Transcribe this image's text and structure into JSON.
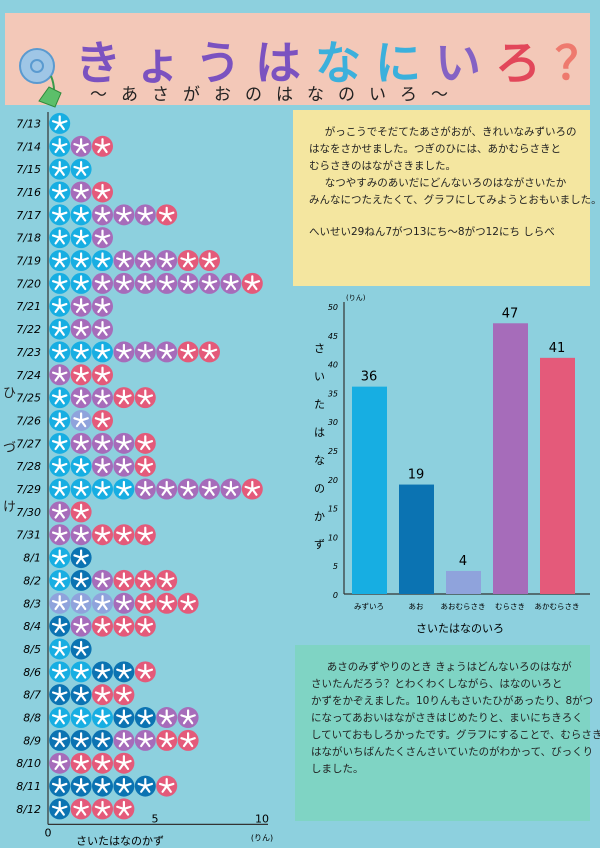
{
  "header": {
    "title_chars": [
      {
        "ch": "き",
        "color": "#7b52c0"
      },
      {
        "ch": "ょ",
        "color": "#7b52c0"
      },
      {
        "ch": "う",
        "color": "#7b52c0"
      },
      {
        "ch": "は",
        "color": "#7b52c0"
      },
      {
        "ch": "な",
        "color": "#3bb0dc"
      },
      {
        "ch": "に",
        "color": "#3bb0dc"
      },
      {
        "ch": "い",
        "color": "#8462c4"
      },
      {
        "ch": "ろ",
        "color": "#e2475a"
      },
      {
        "ch": "？",
        "color": "#ee7a6e"
      }
    ],
    "subtitle": "〜あさがおのはなのいろ〜"
  },
  "intro": {
    "lines": [
      "がっこうでそだてたあさがおが、きれいなみずいろの",
      "はなをさかせました。つぎのひには、あかむらさきと",
      "むらさきのはながさきました。",
      "なつやすみのあいだにどんないろのはながさいたか",
      "みんなにつたえたくて、グラフにしてみようとおもいました。"
    ],
    "period": "へいせい29ねん7がつ13にち〜8がつ12にち しらべ"
  },
  "summary": {
    "lines": [
      "あさのみずやりのとき きょうはどんないろのはなが",
      "さいたんだろう？とわくわくしながら、はなのいろと",
      "かずをかぞえました。10りんもさいたひがあったり、8がつ",
      "になってあおいはながさきはじめたりと、まいにちきろく",
      "していておもしろかったです。グラフにすることで、むらさきの",
      "はながいちばんたくさんさいていたのがわかって、びっくり",
      "しました。"
    ]
  },
  "side_label": [
    "ひ",
    "づ",
    "け"
  ],
  "colors": {
    "L": "#17aee2",
    "B": "#0b73b2",
    "V": "#8fa3dc",
    "P": "#a66cba",
    "R": "#e45a7a"
  },
  "chart_data": [
    {
      "type": "table",
      "xlabel": "さいたはなのかず",
      "xunit": "(りん)",
      "xticks": [
        0,
        5,
        10
      ],
      "xlim": [
        0,
        10
      ],
      "days": [
        {
          "date": "7/13",
          "flowers": "L"
        },
        {
          "date": "7/14",
          "flowers": "LPR"
        },
        {
          "date": "7/15",
          "flowers": "LL"
        },
        {
          "date": "7/16",
          "flowers": "LPR"
        },
        {
          "date": "7/17",
          "flowers": "LLPPPR"
        },
        {
          "date": "7/18",
          "flowers": "LLP"
        },
        {
          "date": "7/19",
          "flowers": "LLLPPPRR"
        },
        {
          "date": "7/20",
          "flowers": "LLPPPPPPPR"
        },
        {
          "date": "7/21",
          "flowers": "LPP"
        },
        {
          "date": "7/22",
          "flowers": "LPP"
        },
        {
          "date": "7/23",
          "flowers": "LLLPPPRR"
        },
        {
          "date": "7/24",
          "flowers": "PRR"
        },
        {
          "date": "7/25",
          "flowers": "LPPRR"
        },
        {
          "date": "7/26",
          "flowers": "LVR"
        },
        {
          "date": "7/27",
          "flowers": "LPPPR"
        },
        {
          "date": "7/28",
          "flowers": "LLPPR"
        },
        {
          "date": "7/29",
          "flowers": "LLLLPPPPPR"
        },
        {
          "date": "7/30",
          "flowers": "PR"
        },
        {
          "date": "7/31",
          "flowers": "PPRRR"
        },
        {
          "date": "8/1",
          "flowers": "LB"
        },
        {
          "date": "8/2",
          "flowers": "LBPRRR"
        },
        {
          "date": "8/3",
          "flowers": "VVVPRRR"
        },
        {
          "date": "8/4",
          "flowers": "BPRRR"
        },
        {
          "date": "8/5",
          "flowers": "LB"
        },
        {
          "date": "8/6",
          "flowers": "LLBBR"
        },
        {
          "date": "8/7",
          "flowers": "BBRR"
        },
        {
          "date": "8/8",
          "flowers": "LLLBBPP"
        },
        {
          "date": "8/9",
          "flowers": "BBBPPRR"
        },
        {
          "date": "8/10",
          "flowers": "PRRR"
        },
        {
          "date": "8/11",
          "flowers": "BBBBBR"
        },
        {
          "date": "8/12",
          "flowers": "BRRR"
        }
      ]
    },
    {
      "type": "bar",
      "categories": [
        "みずいろ",
        "あお",
        "あおむらさき",
        "むらさき",
        "あかむらさき"
      ],
      "values": [
        36,
        19,
        4,
        47,
        41
      ],
      "bar_colors": [
        "#17aee2",
        "#0b73b2",
        "#8fa3dc",
        "#a66cba",
        "#e45a7a"
      ],
      "xlabel": "さいたはなのいろ",
      "ylabel": "さいたはなのかず",
      "yunit": "(りん)",
      "ylim": [
        0,
        50
      ],
      "yticks": [
        0,
        5,
        10,
        15,
        20,
        25,
        30,
        35,
        40,
        45,
        50
      ]
    }
  ]
}
